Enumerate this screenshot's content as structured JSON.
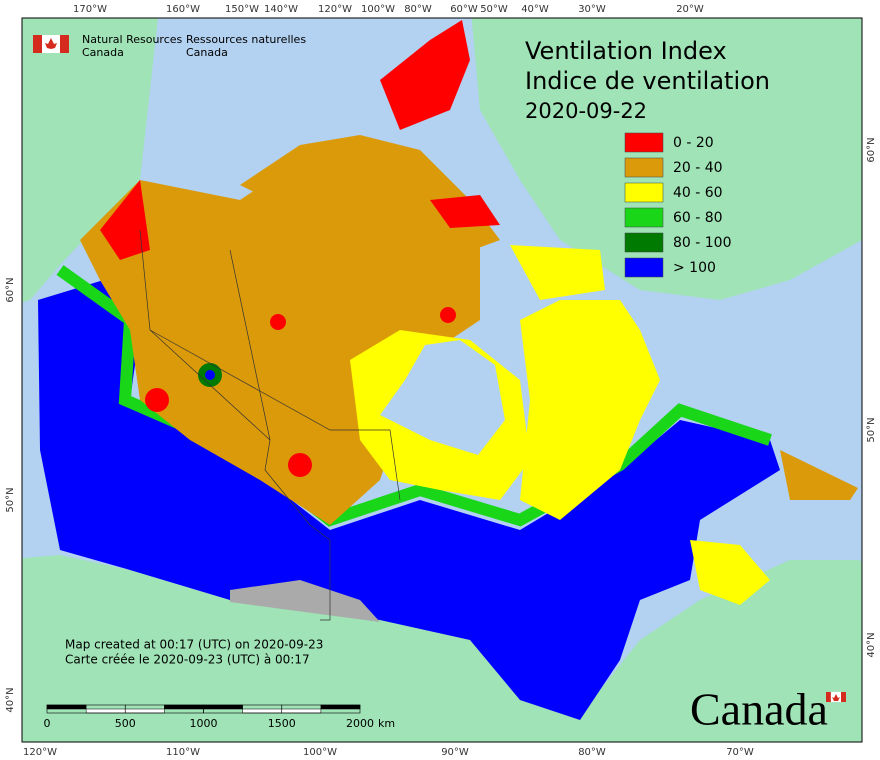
{
  "header": {
    "org_en": [
      "Natural Resources",
      "Canada"
    ],
    "org_fr": [
      "Ressources naturelles",
      "Canada"
    ]
  },
  "title": [
    "Ventilation Index",
    "Indice de ventilation",
    "2020-09-22"
  ],
  "legend": [
    {
      "label": "0 - 20",
      "color": "#ff0000"
    },
    {
      "label": "20 - 40",
      "color": "#db9a09"
    },
    {
      "label": "40 - 60",
      "color": "#ffff00"
    },
    {
      "label": "60 - 80",
      "color": "#19d619"
    },
    {
      "label": "80 - 100",
      "color": "#007a00"
    },
    {
      "label": "> 100",
      "color": "#0000ff"
    }
  ],
  "graticule": {
    "top": [
      "170°W",
      "160°W",
      "150°W",
      "140°W",
      "120°W",
      "100°W",
      "80°W",
      "60°W",
      "50°W",
      "40°W",
      "30°W",
      "20°W"
    ],
    "bottom": [
      "120°W",
      "110°W",
      "100°W",
      "90°W",
      "80°W",
      "70°W"
    ],
    "left": [
      "60°N",
      "50°N",
      "40°N"
    ],
    "right": [
      "60°N",
      "50°N",
      "40°N"
    ]
  },
  "footer": [
    "Map created at 00:17 (UTC) on 2020-09-23",
    "Carte créée le 2020-09-23 (UTC) à 00:17"
  ],
  "scale_bar": {
    "labels": [
      "0",
      "500",
      "1000",
      "1500",
      "2000"
    ],
    "unit": "km"
  },
  "wordmark": "Canada"
}
